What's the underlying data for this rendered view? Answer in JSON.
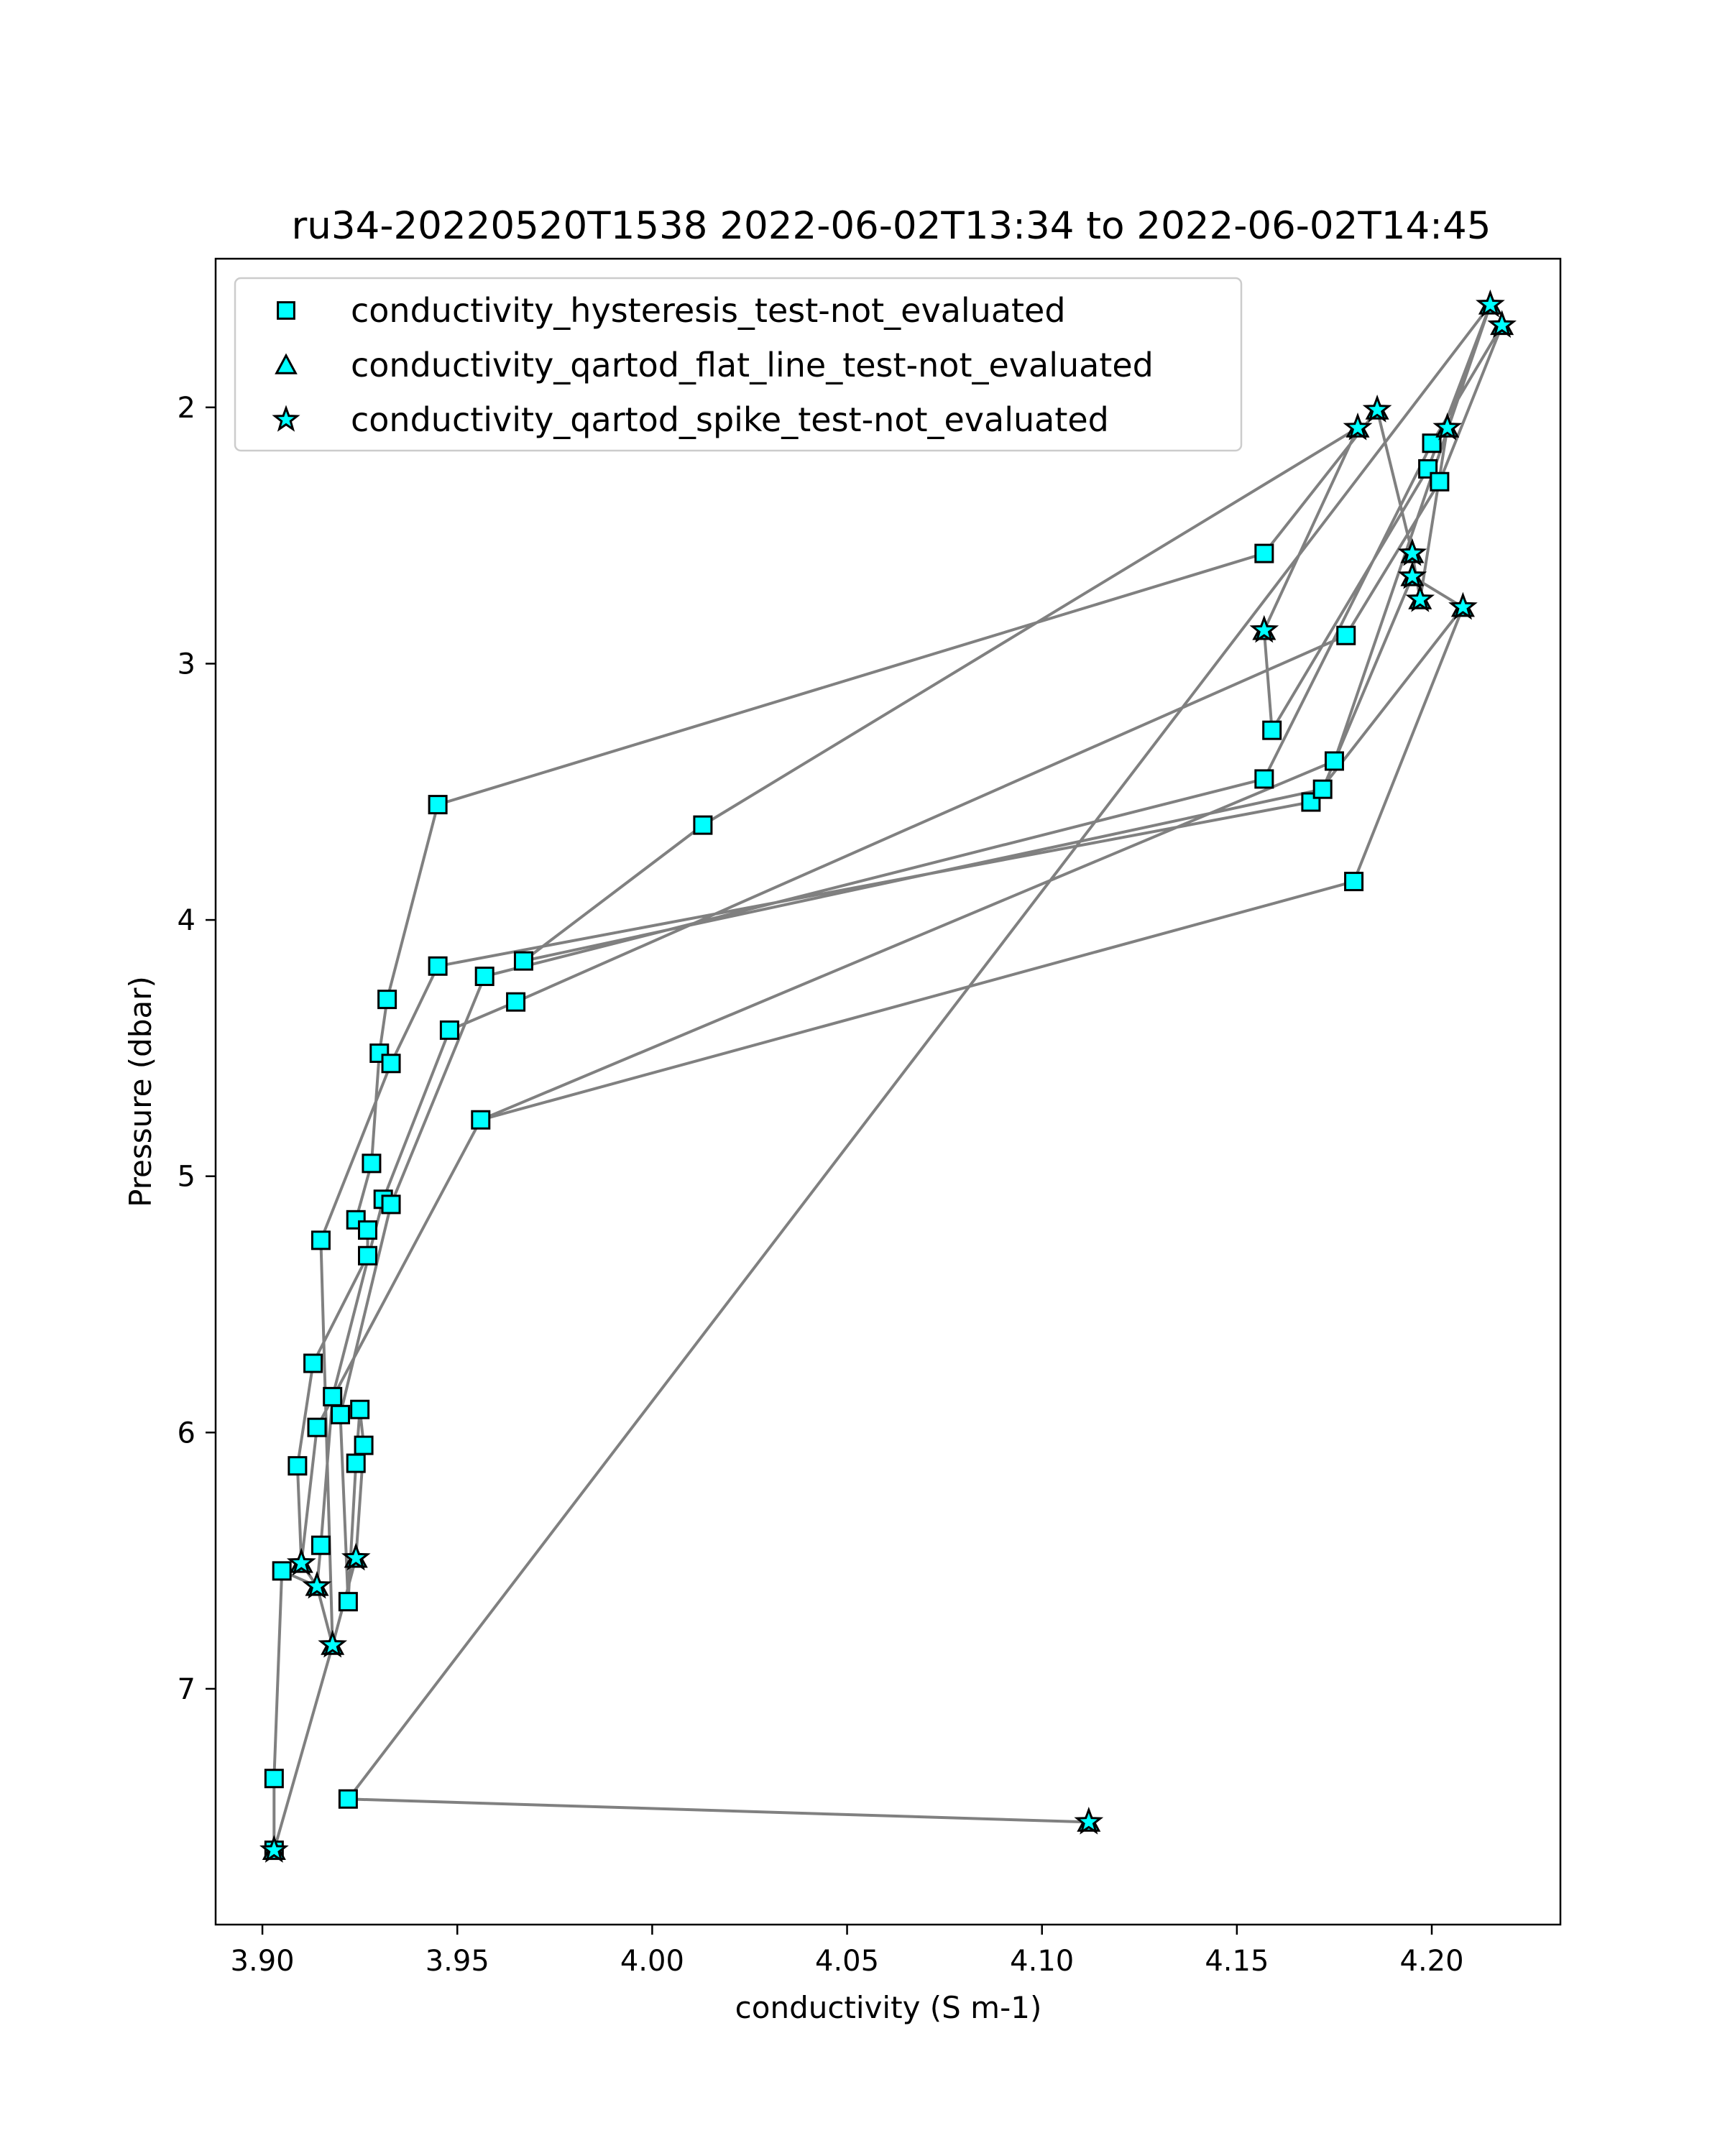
{
  "chart_data": {
    "type": "line",
    "title": "ru34-20220520T1538 2022-06-02T13:34 to 2022-06-02T14:45",
    "xlabel": "conductivity (S m-1)",
    "ylabel": "Pressure (dbar)",
    "xlim": [
      3.888,
      4.233
    ],
    "ylim": [
      7.92,
      1.42
    ],
    "y_inverted": true,
    "xticks": [
      "3.90",
      "3.95",
      "4.00",
      "4.05",
      "4.10",
      "4.15",
      "4.20"
    ],
    "yticks": [
      "2",
      "3",
      "4",
      "5",
      "6",
      "7"
    ],
    "grid": false,
    "legend_placement": "top-left",
    "line_color": "#808080",
    "marker_color": "#00ffff",
    "marker_edge_color": "#000000",
    "series": [
      {
        "name": "conductivity_hysteresis_test-not_evaluated",
        "marker": "square",
        "points": [
          [
            3.903,
            7.63
          ],
          [
            3.903,
            7.35
          ],
          [
            3.905,
            6.54
          ],
          [
            3.909,
            6.13
          ],
          [
            3.913,
            5.73
          ],
          [
            3.915,
            5.25
          ],
          [
            3.918,
            5.86
          ],
          [
            3.92,
            5.93
          ],
          [
            3.922,
            6.66
          ],
          [
            3.924,
            6.12
          ],
          [
            3.926,
            6.05
          ],
          [
            3.925,
            5.91
          ],
          [
            3.924,
            5.17
          ],
          [
            3.927,
            5.21
          ],
          [
            3.927,
            5.31
          ],
          [
            3.928,
            4.95
          ],
          [
            3.93,
            4.52
          ],
          [
            3.931,
            5.09
          ],
          [
            3.933,
            4.56
          ],
          [
            3.933,
            5.11
          ],
          [
            3.932,
            4.31
          ],
          [
            3.945,
            3.55
          ],
          [
            3.945,
            4.18
          ],
          [
            3.948,
            4.43
          ],
          [
            3.956,
            4.78
          ],
          [
            3.957,
            4.22
          ],
          [
            3.965,
            4.32
          ],
          [
            3.967,
            4.16
          ],
          [
            4.013,
            3.63
          ],
          [
            3.914,
            5.98
          ],
          [
            3.915,
            6.44
          ],
          [
            3.922,
            7.43
          ],
          [
            4.157,
            2.57
          ],
          [
            4.157,
            3.45
          ],
          [
            4.159,
            3.26
          ],
          [
            4.169,
            3.54
          ],
          [
            4.172,
            3.49
          ],
          [
            4.175,
            3.38
          ],
          [
            4.178,
            2.89
          ],
          [
            4.18,
            3.85
          ],
          [
            4.199,
            2.24
          ],
          [
            4.2,
            2.14
          ],
          [
            4.202,
            2.29
          ]
        ]
      },
      {
        "name": "conductivity_qartod_flat_line_test-not_evaluated",
        "marker": "triangle",
        "points": [
          [
            3.903,
            7.63
          ],
          [
            3.91,
            6.51
          ],
          [
            3.914,
            6.6
          ],
          [
            3.918,
            6.83
          ],
          [
            3.924,
            6.49
          ],
          [
            4.112,
            7.52
          ],
          [
            4.157,
            2.87
          ],
          [
            4.181,
            2.08
          ],
          [
            4.186,
            2.01
          ],
          [
            4.195,
            2.57
          ],
          [
            4.195,
            2.66
          ],
          [
            4.197,
            2.75
          ],
          [
            4.204,
            2.08
          ],
          [
            4.208,
            2.78
          ],
          [
            4.215,
            1.6
          ],
          [
            4.218,
            1.68
          ]
        ]
      },
      {
        "name": "conductivity_qartod_spike_test-not_evaluated",
        "marker": "star",
        "points": [
          [
            3.903,
            7.63
          ],
          [
            3.91,
            6.51
          ],
          [
            3.914,
            6.6
          ],
          [
            3.918,
            6.83
          ],
          [
            3.924,
            6.49
          ],
          [
            4.112,
            7.52
          ],
          [
            4.157,
            2.87
          ],
          [
            4.181,
            2.08
          ],
          [
            4.186,
            2.01
          ],
          [
            4.195,
            2.57
          ],
          [
            4.195,
            2.66
          ],
          [
            4.197,
            2.75
          ],
          [
            4.204,
            2.08
          ],
          [
            4.208,
            2.78
          ],
          [
            4.215,
            1.6
          ],
          [
            4.218,
            1.68
          ]
        ]
      }
    ],
    "profile_path": [
      [
        4.112,
        7.52
      ],
      [
        3.922,
        7.43
      ],
      [
        4.215,
        1.6
      ],
      [
        4.204,
        2.08
      ],
      [
        4.197,
        2.75
      ],
      [
        4.195,
        2.57
      ],
      [
        4.186,
        2.01
      ],
      [
        4.157,
        2.57
      ],
      [
        3.945,
        3.55
      ],
      [
        3.932,
        4.31
      ],
      [
        3.93,
        4.52
      ],
      [
        3.928,
        4.95
      ],
      [
        3.924,
        5.17
      ],
      [
        3.927,
        5.21
      ],
      [
        3.927,
        5.31
      ],
      [
        3.913,
        5.73
      ],
      [
        3.909,
        6.13
      ],
      [
        3.91,
        6.51
      ],
      [
        3.914,
        6.6
      ],
      [
        3.918,
        6.83
      ],
      [
        3.924,
        6.49
      ],
      [
        3.926,
        6.05
      ],
      [
        3.925,
        5.91
      ],
      [
        3.924,
        6.12
      ],
      [
        3.922,
        6.66
      ],
      [
        3.92,
        5.93
      ],
      [
        3.933,
        5.11
      ],
      [
        3.957,
        4.22
      ],
      [
        4.157,
        3.45
      ],
      [
        4.2,
        2.14
      ],
      [
        4.218,
        1.68
      ],
      [
        4.202,
        2.29
      ],
      [
        4.178,
        2.89
      ],
      [
        3.965,
        4.32
      ],
      [
        3.948,
        4.43
      ],
      [
        3.931,
        5.09
      ],
      [
        3.918,
        5.86
      ],
      [
        3.915,
        6.44
      ],
      [
        3.914,
        6.6
      ],
      [
        3.905,
        6.54
      ],
      [
        3.903,
        7.35
      ],
      [
        3.903,
        7.63
      ],
      [
        3.918,
        6.83
      ],
      [
        3.915,
        5.25
      ],
      [
        3.933,
        4.56
      ],
      [
        3.945,
        4.18
      ],
      [
        4.169,
        3.54
      ],
      [
        4.208,
        2.78
      ],
      [
        4.195,
        2.66
      ],
      [
        4.172,
        3.49
      ],
      [
        3.967,
        4.16
      ],
      [
        4.013,
        3.63
      ],
      [
        4.181,
        2.08
      ],
      [
        4.157,
        2.87
      ],
      [
        4.159,
        3.26
      ],
      [
        4.199,
        2.24
      ],
      [
        4.215,
        1.6
      ],
      [
        4.175,
        3.38
      ],
      [
        3.956,
        4.78
      ],
      [
        3.914,
        5.98
      ],
      [
        3.91,
        6.51
      ]
    ],
    "profile_path_2": [
      [
        4.208,
        2.78
      ],
      [
        4.18,
        3.85
      ],
      [
        3.956,
        4.78
      ]
    ]
  }
}
